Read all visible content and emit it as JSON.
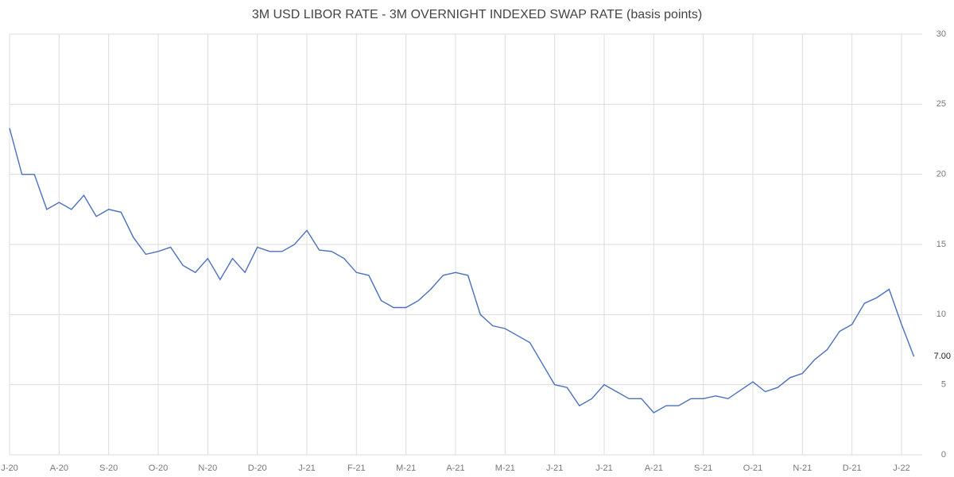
{
  "chart_data": {
    "type": "line",
    "title": "3M USD LIBOR RATE - 3M OVERNIGHT INDEXED SWAP RATE (basis points)",
    "categories": [
      "J-20",
      null,
      null,
      null,
      "A-20",
      null,
      null,
      null,
      "S-20",
      null,
      null,
      null,
      "O-20",
      null,
      null,
      null,
      "N-20",
      null,
      null,
      null,
      "D-20",
      null,
      null,
      null,
      "J-21",
      null,
      null,
      null,
      "F-21",
      null,
      null,
      null,
      "M-21",
      null,
      null,
      null,
      "A-21",
      null,
      null,
      null,
      "M-21",
      null,
      null,
      null,
      "J-21",
      null,
      null,
      null,
      "J-21",
      null,
      null,
      null,
      "A-21",
      null,
      null,
      null,
      "S-21",
      null,
      null,
      null,
      "O-21",
      null,
      null,
      null,
      "N-21",
      null,
      null,
      null,
      "D-21",
      null,
      null,
      null,
      "J-22",
      null
    ],
    "series": [
      {
        "color": "#4a6fc1",
        "values": [
          23.3,
          20.0,
          20.0,
          17.5,
          18.0,
          17.5,
          18.5,
          17.0,
          17.5,
          17.3,
          15.5,
          14.3,
          14.5,
          14.8,
          13.5,
          13.0,
          14.0,
          12.5,
          14.0,
          13.0,
          14.8,
          14.5,
          14.5,
          15.0,
          16.0,
          14.6,
          14.5,
          14.0,
          13.0,
          12.8,
          11.0,
          10.5,
          10.5,
          11.0,
          11.8,
          12.8,
          13.0,
          12.8,
          10.0,
          9.2,
          9.0,
          8.5,
          8.0,
          6.5,
          5.0,
          4.8,
          3.5,
          4.0,
          5.0,
          4.5,
          4.0,
          4.0,
          3.0,
          3.5,
          3.5,
          4.0,
          4.0,
          4.2,
          4.0,
          4.6,
          5.2,
          4.5,
          4.8,
          5.5,
          5.8,
          6.8,
          7.5,
          8.8,
          9.3,
          10.8,
          11.2,
          11.8,
          9.3,
          7.0
        ],
        "value_labels": [
          null,
          null,
          null,
          null,
          null,
          null,
          null,
          null,
          null,
          null,
          null,
          null,
          null,
          null,
          null,
          null,
          null,
          null,
          null,
          null,
          null,
          null,
          null,
          null,
          null,
          null,
          null,
          null,
          null,
          null,
          null,
          null,
          null,
          null,
          null,
          null,
          null,
          null,
          null,
          null,
          null,
          null,
          null,
          null,
          null,
          null,
          null,
          null,
          null,
          null,
          null,
          null,
          null,
          null,
          null,
          null,
          null,
          null,
          null,
          null,
          null,
          null,
          null,
          null,
          null,
          null,
          null,
          null,
          null,
          null,
          null,
          null,
          null,
          "7.00"
        ]
      }
    ],
    "ylim": [
      0,
      30
    ],
    "yticks": [
      0,
      5,
      10,
      15,
      20,
      25,
      30
    ],
    "grid": true
  }
}
